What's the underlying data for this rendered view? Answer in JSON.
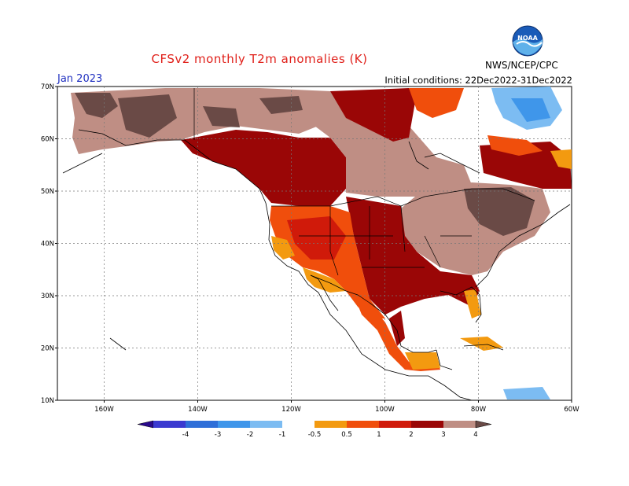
{
  "title": "CFSv2 monthly T2m anomalies (K)",
  "month": "Jan 2023",
  "initial_conditions": "Initial conditions: 22Dec2022-31Dec2022",
  "agency": "NWS/NCEP/CPC",
  "logo_text": "NOAA",
  "lat_labels": [
    "70N",
    "60N",
    "50N",
    "40N",
    "30N",
    "20N",
    "10N"
  ],
  "lon_labels": [
    "160W",
    "140W",
    "120W",
    "100W",
    "80W",
    "60W"
  ],
  "colorbar": {
    "labels": [
      "-4",
      "-3",
      "-2",
      "-1",
      "-0.5",
      "0.5",
      "1",
      "2",
      "3",
      "4"
    ],
    "colors": [
      "#2a0a8c",
      "#3b3ad0",
      "#2f6fd8",
      "#3f96ea",
      "#7cbcf2",
      "#ffffff",
      "#f39a10",
      "#f04e0c",
      "#d01a0a",
      "#9a0606",
      "#bf8e84",
      "#6a4a46"
    ]
  },
  "legend_colors": {
    "neutral": "#bf8e84",
    "dark_brown": "#6a4a46",
    "dark_red": "#9a0606",
    "red": "#d01a0a",
    "orange_red": "#f04e0c",
    "orange": "#f39a10",
    "light_blue": "#7cbcf2",
    "blue": "#3f96ea"
  }
}
